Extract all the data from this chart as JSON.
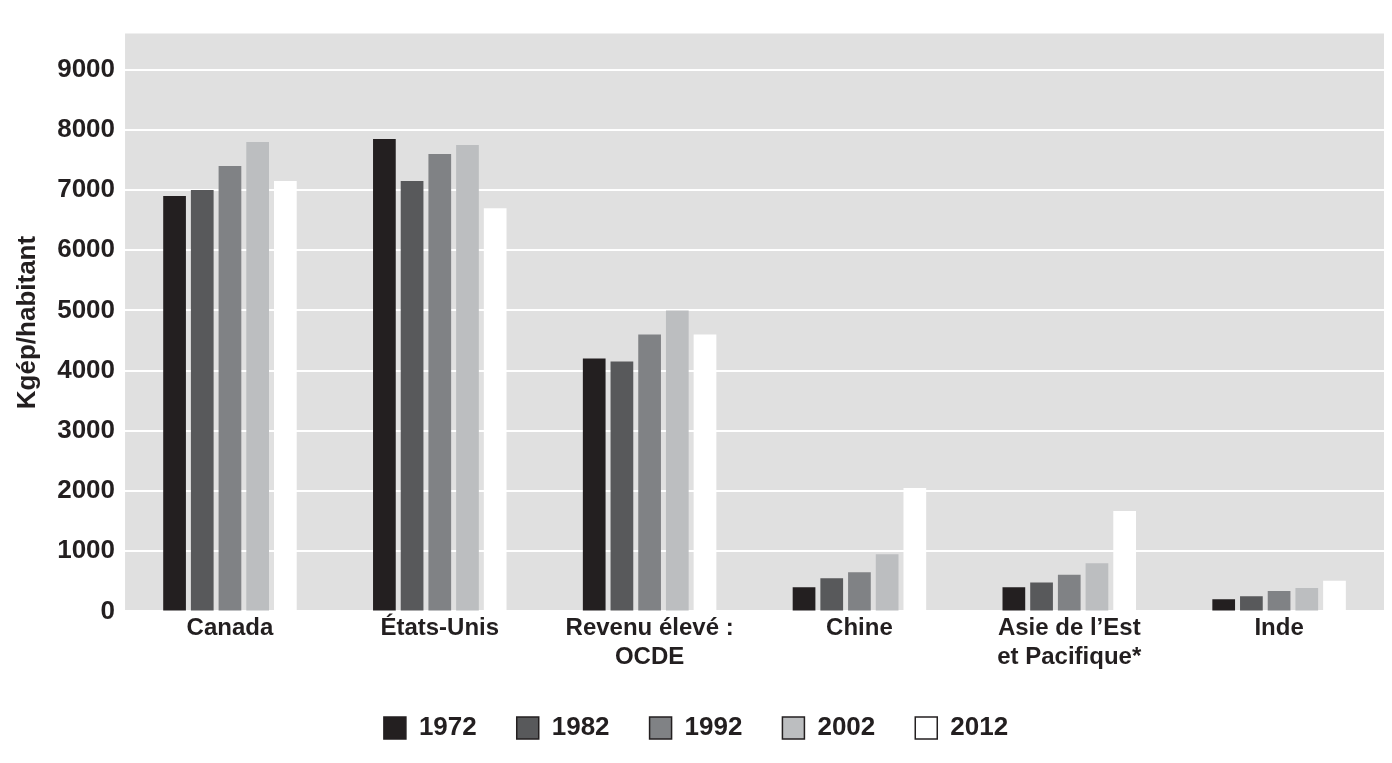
{
  "chart_data": {
    "type": "bar",
    "ylabel": "Kgép/habitant",
    "categories": [
      "Canada",
      "États-Unis",
      "Revenu élevé : OCDE",
      "Chine",
      "Asie de l’Est et Pacifique*",
      "Inde"
    ],
    "series": [
      {
        "name": "1972",
        "color": "#231f20",
        "values": [
          6900,
          7850,
          4200,
          400,
          400,
          200
        ]
      },
      {
        "name": "1982",
        "color": "#58595b",
        "values": [
          7000,
          7150,
          4150,
          550,
          480,
          250
        ]
      },
      {
        "name": "1992",
        "color": "#808285",
        "values": [
          7400,
          7600,
          4600,
          650,
          610,
          340
        ]
      },
      {
        "name": "2002",
        "color": "#bcbec0",
        "values": [
          7800,
          7750,
          5000,
          950,
          800,
          390
        ]
      },
      {
        "name": "2012",
        "color": "#ffffff",
        "values": [
          7150,
          6700,
          4600,
          2050,
          1670,
          510
        ]
      }
    ],
    "ylim": [
      0,
      9600
    ],
    "yticks": [
      0,
      1000,
      2000,
      3000,
      4000,
      5000,
      6000,
      7000,
      8000,
      9000
    ],
    "grid": "y",
    "legend": "bottom"
  }
}
